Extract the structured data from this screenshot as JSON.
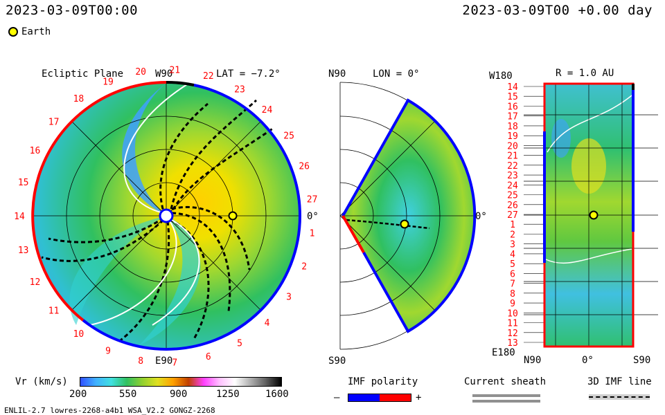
{
  "header": {
    "timestamp": "2023-03-09T00:00",
    "offset": "2023-03-09T00 +0.00 day",
    "earth_label": "Earth"
  },
  "ecliptic": {
    "title": "Ecliptic Plane",
    "lat": "LAT = −7.2°",
    "top": "W90",
    "bottom": "E90",
    "right": "0°",
    "sectors": [
      "1",
      "2",
      "3",
      "4",
      "5",
      "6",
      "7",
      "8",
      "9",
      "10",
      "11",
      "12",
      "13",
      "14",
      "15",
      "16",
      "17",
      "18",
      "19",
      "20",
      "21",
      "22",
      "23",
      "24",
      "25",
      "26",
      "27"
    ]
  },
  "meridional": {
    "top": "N90",
    "bottom": "S90",
    "lon": "LON = 0°",
    "right": "0°"
  },
  "synoptic": {
    "top_left": "W180",
    "bottom_left": "E180",
    "r": "R = 1.0 AU",
    "rows": [
      "14",
      "15",
      "16",
      "17",
      "18",
      "19",
      "20",
      "21",
      "22",
      "23",
      "24",
      "25",
      "26",
      "27",
      "1",
      "2",
      "3",
      "4",
      "5",
      "6",
      "7",
      "8",
      "9",
      "10",
      "11",
      "12",
      "13"
    ],
    "x_left": "N90",
    "x_mid": "0°",
    "x_right": "S90"
  },
  "colorbar": {
    "label": "Vr (km/s)",
    "ticks": [
      "200",
      "550",
      "900",
      "1250",
      "1600"
    ],
    "colors": [
      "#3050ff",
      "#40b0ff",
      "#40e0e0",
      "#30c060",
      "#90d030",
      "#e0e020",
      "#ffa000",
      "#c04000",
      "#ff40ff",
      "#ffc0ff",
      "#ffffff",
      "#b0b0b0",
      "#606060",
      "#000000"
    ]
  },
  "legend": {
    "imf_label": "IMF polarity",
    "minus": "–",
    "plus": "+",
    "neg_color": "#0000ff",
    "pos_color": "#ff0000",
    "sheath_label": "Current sheath",
    "imf3d_label": "3D IMF line"
  },
  "footer": {
    "left": "ENLIL-2.7 lowres-2268-a4b1 WSA_V2.2 GONGZ-2268"
  }
}
